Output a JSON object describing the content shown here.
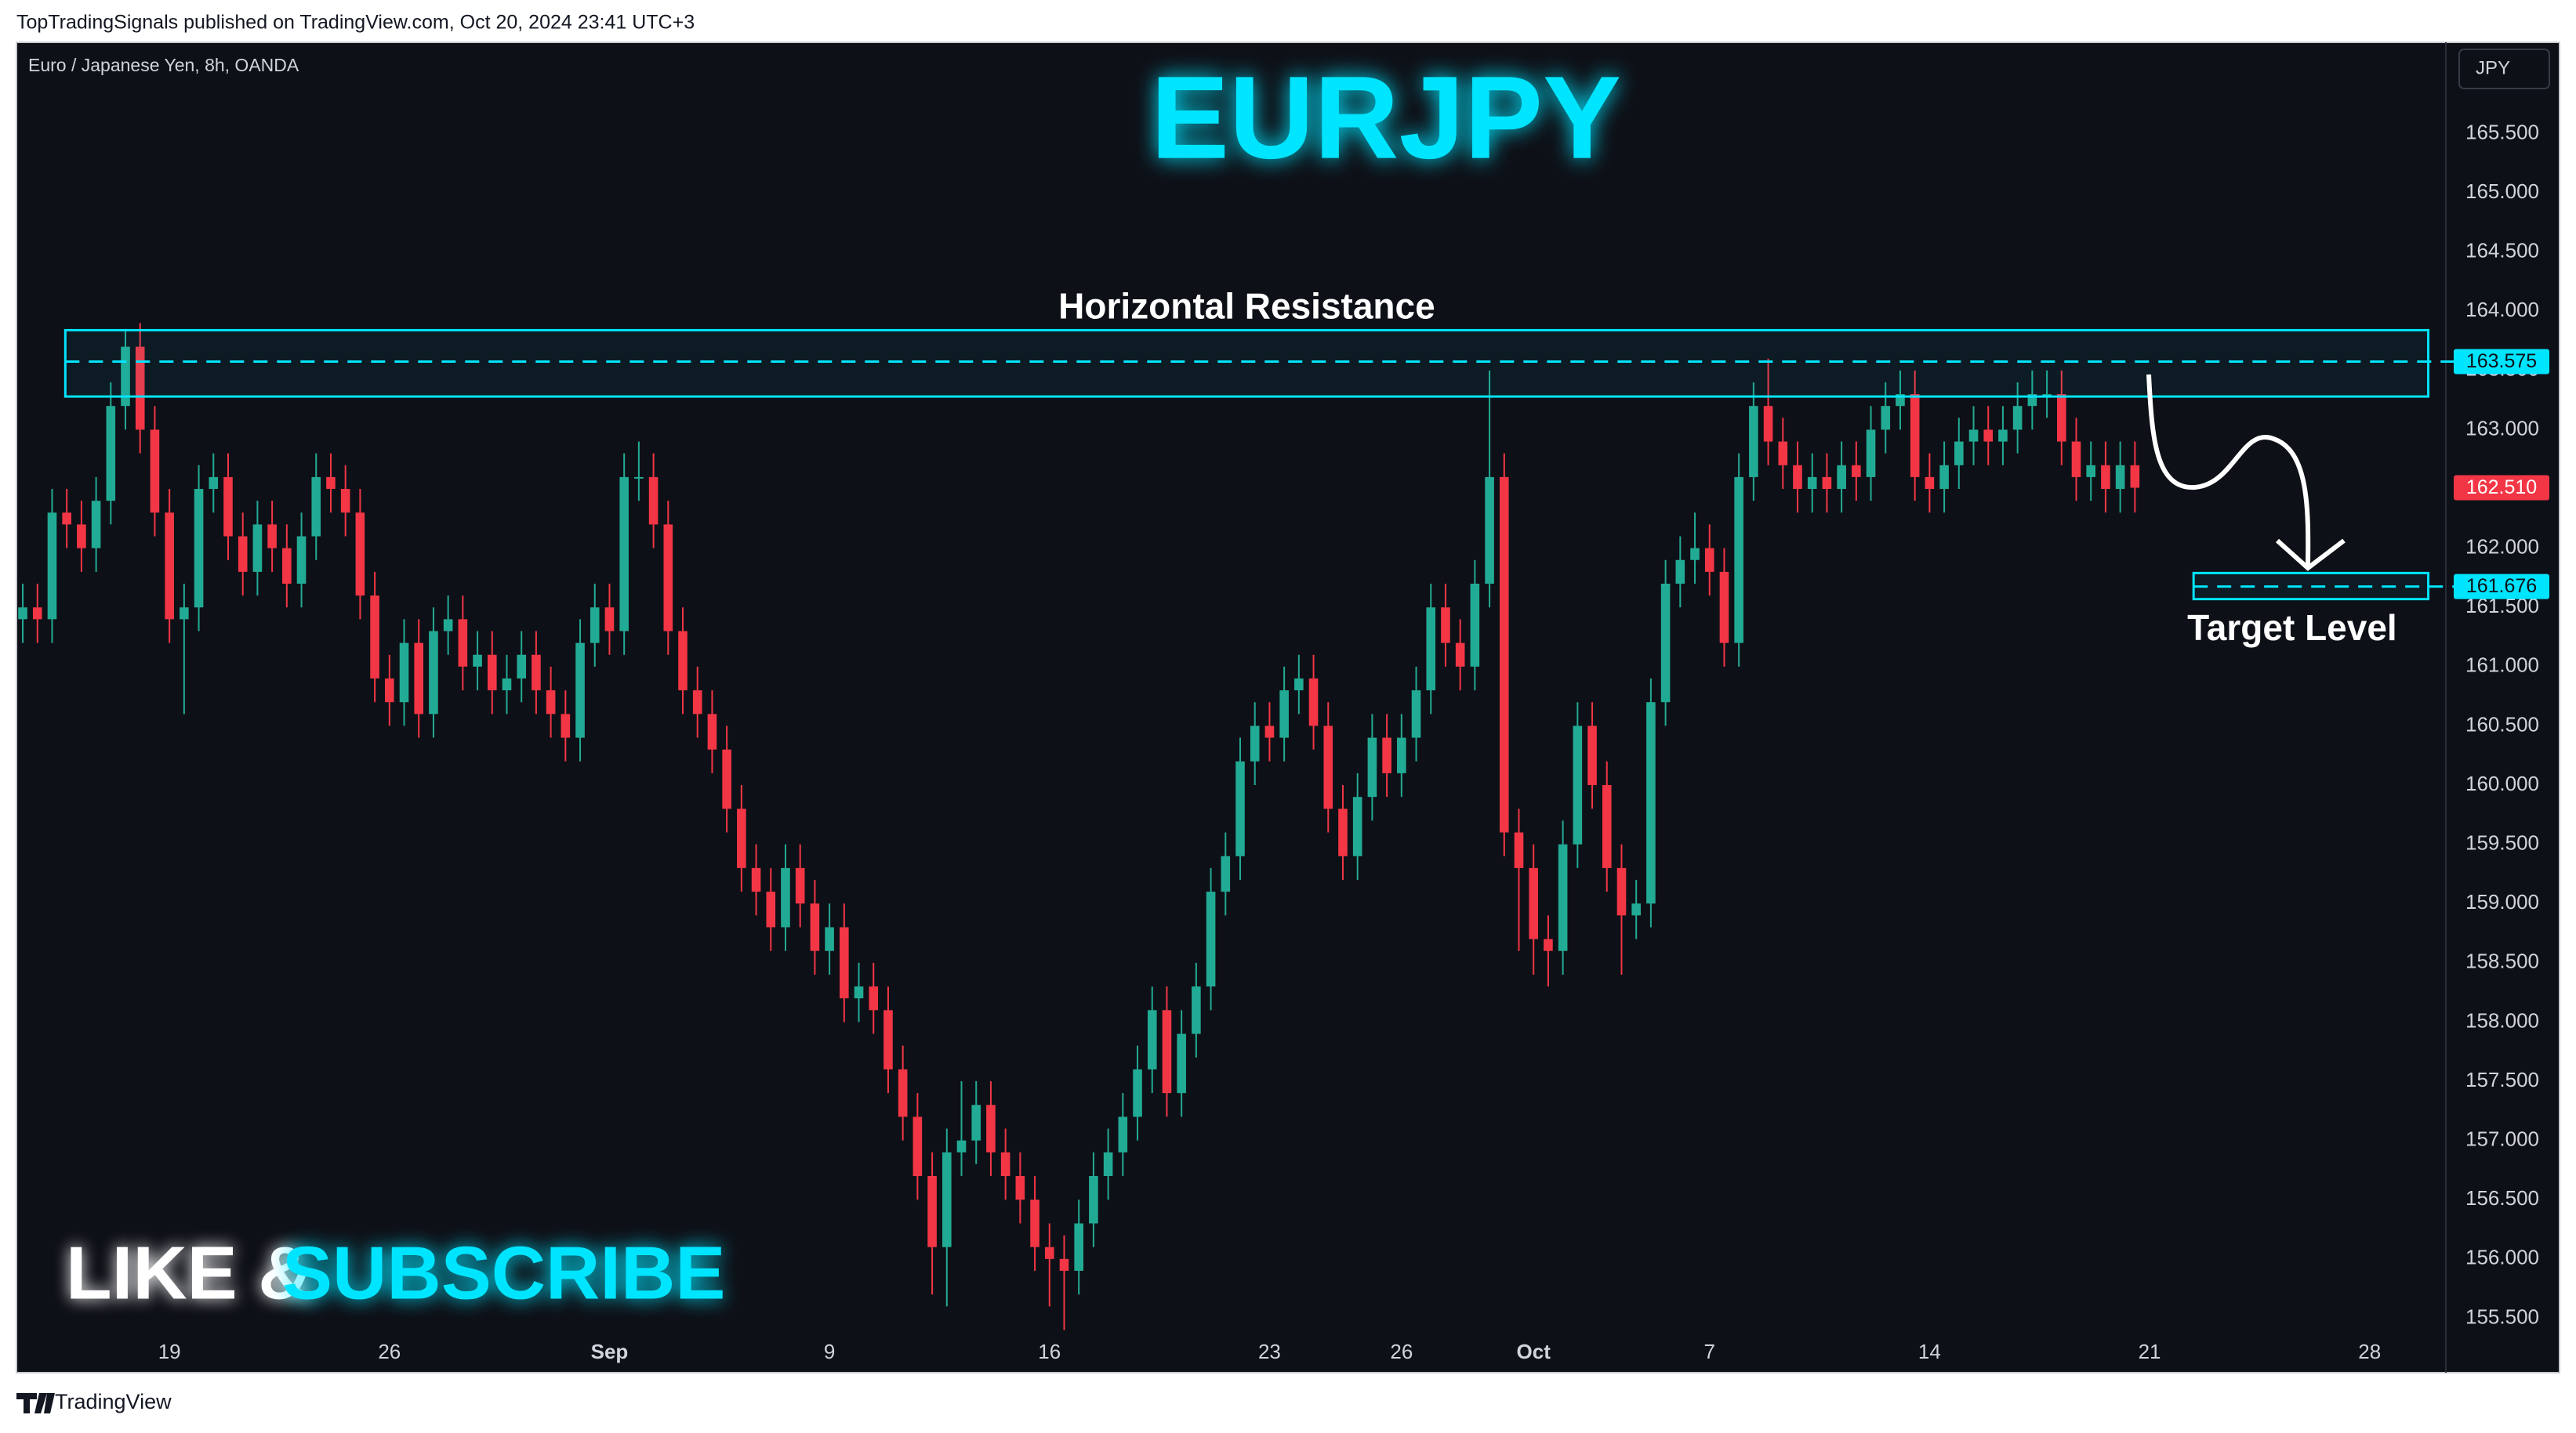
{
  "header": {
    "publisher": "TopTradingSignals published on TradingView.com, Oct 20, 2024 23:41 UTC+3"
  },
  "chart_data": {
    "type": "candlestick",
    "title": "EURJPY",
    "symbol": "Euro / Japanese Yen, 8h, OANDA",
    "currency": "JPY",
    "up_color": "#22ab94",
    "down_color": "#f23645",
    "open": [
      161.4,
      161.5,
      161.4,
      162.3,
      162.2,
      162.0,
      162.4,
      163.2,
      163.7,
      163.0,
      162.3,
      161.4,
      161.5,
      162.5,
      162.6,
      162.1,
      161.8,
      162.2,
      162.0,
      161.7,
      162.1,
      162.6,
      162.5,
      162.3,
      161.6,
      160.9,
      160.7,
      161.2,
      160.6,
      161.3,
      161.4,
      161.0,
      161.1,
      160.8,
      160.9,
      161.1,
      160.8,
      160.6,
      160.4,
      161.2,
      161.5,
      161.3,
      162.6,
      162.6,
      162.2,
      161.3,
      160.8,
      160.6,
      160.3,
      159.8,
      159.3,
      159.1,
      158.8,
      159.3,
      159.0,
      158.6,
      158.8,
      158.2,
      158.3,
      158.1,
      157.6,
      157.2,
      156.7,
      156.1,
      156.9,
      157.0,
      157.3,
      156.9,
      156.7,
      156.5,
      156.1,
      156.0,
      155.9,
      156.3,
      156.7,
      156.9,
      157.2,
      157.6,
      158.1,
      157.4,
      157.9,
      158.3,
      159.1,
      159.4,
      160.2,
      160.5,
      160.4,
      160.8,
      160.9,
      160.5,
      159.8,
      159.4,
      159.9,
      160.4,
      160.1,
      160.4,
      160.8,
      161.5,
      161.2,
      161.0,
      161.7,
      162.6,
      159.6,
      159.3,
      158.7,
      158.6,
      159.5,
      160.5,
      160.0,
      159.3,
      158.9,
      159.0,
      160.7,
      161.7,
      161.9,
      162.0,
      161.8,
      161.2,
      162.6,
      163.2,
      162.9,
      162.7,
      162.5,
      162.6,
      162.5,
      162.7,
      162.6,
      163.0,
      163.2,
      163.3,
      162.6,
      162.5,
      162.7,
      162.9,
      163.0,
      162.9,
      163.0,
      163.2,
      163.3,
      163.3,
      162.9,
      162.6,
      162.7,
      162.5,
      162.7
    ],
    "high": [
      161.7,
      161.7,
      162.5,
      162.5,
      162.4,
      162.6,
      163.4,
      163.85,
      163.9,
      163.2,
      162.5,
      161.7,
      162.7,
      162.8,
      162.8,
      162.3,
      162.4,
      162.4,
      162.2,
      162.3,
      162.8,
      162.8,
      162.7,
      162.5,
      161.8,
      161.1,
      161.4,
      161.4,
      161.5,
      161.6,
      161.6,
      161.3,
      161.3,
      161.1,
      161.3,
      161.3,
      161.0,
      160.8,
      161.4,
      161.7,
      161.7,
      162.8,
      162.9,
      162.8,
      162.4,
      161.5,
      161.0,
      160.8,
      160.5,
      160.0,
      159.5,
      159.3,
      159.5,
      159.5,
      159.2,
      159.0,
      159.0,
      158.5,
      158.5,
      158.3,
      157.8,
      157.4,
      156.9,
      157.1,
      157.5,
      157.5,
      157.5,
      157.1,
      156.9,
      156.7,
      156.3,
      156.2,
      156.5,
      156.9,
      157.1,
      157.4,
      157.8,
      158.3,
      158.3,
      158.1,
      158.5,
      159.3,
      159.6,
      160.4,
      160.7,
      160.7,
      161.0,
      161.1,
      161.1,
      160.7,
      160.0,
      160.1,
      160.6,
      160.6,
      160.6,
      161.0,
      161.7,
      161.7,
      161.4,
      161.9,
      163.5,
      162.8,
      159.8,
      159.5,
      158.9,
      159.7,
      160.7,
      160.7,
      160.2,
      159.5,
      159.2,
      160.9,
      161.9,
      162.1,
      162.3,
      162.2,
      162.0,
      162.8,
      163.4,
      163.6,
      163.1,
      162.9,
      162.8,
      162.8,
      162.9,
      162.9,
      163.2,
      163.4,
      163.5,
      163.5,
      162.8,
      162.9,
      163.1,
      163.2,
      163.2,
      163.2,
      163.4,
      163.5,
      163.5,
      163.5,
      163.1,
      162.9,
      162.9,
      162.9,
      162.9
    ],
    "low": [
      161.2,
      161.2,
      161.2,
      162.0,
      161.8,
      161.8,
      162.2,
      163.0,
      162.8,
      162.1,
      161.2,
      160.6,
      161.3,
      162.3,
      161.9,
      161.6,
      161.6,
      161.8,
      161.5,
      161.5,
      161.9,
      162.3,
      162.1,
      161.4,
      160.7,
      160.5,
      160.5,
      160.4,
      160.4,
      161.1,
      160.8,
      160.8,
      160.6,
      160.6,
      160.7,
      160.6,
      160.4,
      160.2,
      160.2,
      161.0,
      161.1,
      161.1,
      162.4,
      162.0,
      161.1,
      160.6,
      160.4,
      160.1,
      159.6,
      159.1,
      158.9,
      158.6,
      158.6,
      158.8,
      158.4,
      158.4,
      158.0,
      158.0,
      157.9,
      157.4,
      157.0,
      156.5,
      155.7,
      155.6,
      156.7,
      156.8,
      156.7,
      156.5,
      156.3,
      155.9,
      155.6,
      155.4,
      155.7,
      156.1,
      156.5,
      156.7,
      157.0,
      157.4,
      157.2,
      157.2,
      157.7,
      158.1,
      158.9,
      159.2,
      160.0,
      160.2,
      160.2,
      160.6,
      160.3,
      159.6,
      159.2,
      159.2,
      159.7,
      159.9,
      159.9,
      160.2,
      160.6,
      161.0,
      160.8,
      160.8,
      161.5,
      159.4,
      158.6,
      158.4,
      158.3,
      158.4,
      159.3,
      159.8,
      159.1,
      158.4,
      158.7,
      158.8,
      160.5,
      161.5,
      161.7,
      161.6,
      161.0,
      161.0,
      162.4,
      162.7,
      162.5,
      162.3,
      162.3,
      162.3,
      162.3,
      162.4,
      162.4,
      162.8,
      163.0,
      162.4,
      162.3,
      162.3,
      162.5,
      162.7,
      162.7,
      162.7,
      162.8,
      163.0,
      163.1,
      162.7,
      162.4,
      162.4,
      162.3,
      162.3,
      162.3
    ],
    "close": [
      161.5,
      161.4,
      162.3,
      162.2,
      162.0,
      162.4,
      163.2,
      163.7,
      163.0,
      162.3,
      161.4,
      161.5,
      162.5,
      162.6,
      162.1,
      161.8,
      162.2,
      162.0,
      161.7,
      162.1,
      162.6,
      162.5,
      162.3,
      161.6,
      160.9,
      160.7,
      161.2,
      160.6,
      161.3,
      161.4,
      161.0,
      161.1,
      160.8,
      160.9,
      161.1,
      160.8,
      160.6,
      160.4,
      161.2,
      161.5,
      161.3,
      162.6,
      162.6,
      162.2,
      161.3,
      160.8,
      160.6,
      160.3,
      159.8,
      159.3,
      159.1,
      158.8,
      159.3,
      159.0,
      158.6,
      158.8,
      158.2,
      158.3,
      158.1,
      157.6,
      157.2,
      156.7,
      156.1,
      156.9,
      157.0,
      157.3,
      156.9,
      156.7,
      156.5,
      156.1,
      156.0,
      155.9,
      156.3,
      156.7,
      156.9,
      157.2,
      157.6,
      158.1,
      157.4,
      157.9,
      158.3,
      159.1,
      159.4,
      160.2,
      160.5,
      160.4,
      160.8,
      160.9,
      160.5,
      159.8,
      159.4,
      159.9,
      160.4,
      160.1,
      160.4,
      160.8,
      161.5,
      161.2,
      161.0,
      161.7,
      162.6,
      159.6,
      159.3,
      158.7,
      158.6,
      159.5,
      160.5,
      160.0,
      159.3,
      158.9,
      159.0,
      160.7,
      161.7,
      161.9,
      162.0,
      161.8,
      161.2,
      162.6,
      163.2,
      162.9,
      162.7,
      162.5,
      162.6,
      162.5,
      162.7,
      162.6,
      163.0,
      163.2,
      163.3,
      162.6,
      162.5,
      162.7,
      162.9,
      163.0,
      162.9,
      163.0,
      163.2,
      163.3,
      163.3,
      162.9,
      162.6,
      162.7,
      162.5,
      162.7,
      162.51
    ],
    "xlim": [
      -0.43,
      165.2
    ],
    "xticks": [
      {
        "value": 10,
        "label": "19"
      },
      {
        "value": 25,
        "label": "26"
      },
      {
        "value": 40,
        "label": "Sep"
      },
      {
        "value": 55,
        "label": "9"
      },
      {
        "value": 70,
        "label": "16"
      },
      {
        "value": 85,
        "label": "23"
      },
      {
        "value": 94,
        "label": "26"
      },
      {
        "value": 103,
        "label": "Oct"
      },
      {
        "value": 115,
        "label": "7"
      },
      {
        "value": 130,
        "label": "14"
      },
      {
        "value": 145,
        "label": "21"
      },
      {
        "value": 160,
        "label": "28"
      }
    ],
    "ylim": [
      155.04,
      166.27
    ],
    "yticks": [
      {
        "value": 155.5,
        "label": "155.500"
      },
      {
        "value": 156,
        "label": "156.000"
      },
      {
        "value": 156.5,
        "label": "156.500"
      },
      {
        "value": 157,
        "label": "157.000"
      },
      {
        "value": 157.5,
        "label": "157.500"
      },
      {
        "value": 158,
        "label": "158.000"
      },
      {
        "value": 158.5,
        "label": "158.500"
      },
      {
        "value": 159,
        "label": "159.000"
      },
      {
        "value": 159.5,
        "label": "159.500"
      },
      {
        "value": 160,
        "label": "160.000"
      },
      {
        "value": 160.5,
        "label": "160.500"
      },
      {
        "value": 161,
        "label": "161.000"
      },
      {
        "value": 161.5,
        "label": "161.500"
      },
      {
        "value": 162,
        "label": "162.000"
      },
      {
        "value": 162.5,
        "label": "162.500"
      },
      {
        "value": 163,
        "label": "163.000"
      },
      {
        "value": 163.5,
        "label": "163.500"
      },
      {
        "value": 164,
        "label": "164.000"
      },
      {
        "value": 164.5,
        "label": "164.500"
      },
      {
        "value": 165,
        "label": "165.000"
      },
      {
        "value": 165.5,
        "label": "165.500"
      }
    ],
    "annotations": [
      {
        "text": "Horizontal Resistance",
        "band": [
          163.28,
          163.84
        ],
        "level": 163.575,
        "x_range": [
          2.9,
          164
        ],
        "label_position": "above"
      },
      {
        "text": "Target Level",
        "band": [
          161.57,
          161.79
        ],
        "level": 161.676,
        "x_range": [
          148,
          164
        ],
        "label_position": "below"
      }
    ],
    "annotation_color": "#00e5ff",
    "last_price": {
      "value": 162.51,
      "label": "162.510"
    }
  },
  "promo": {
    "like": "LIKE &",
    "subscribe": "SUBSCRIBE"
  },
  "footer": {
    "brand": "TradingView"
  }
}
